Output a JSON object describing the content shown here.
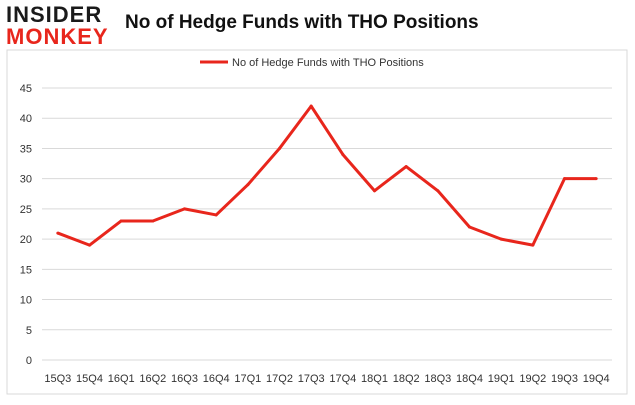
{
  "logo": {
    "line1": "INSIDER",
    "line2": "MONKEY"
  },
  "chart_data": {
    "type": "line",
    "title": "No of Hedge Funds with THO Positions",
    "xlabel": "",
    "ylabel": "",
    "categories": [
      "15Q3",
      "15Q4",
      "16Q1",
      "16Q2",
      "16Q3",
      "16Q4",
      "17Q1",
      "17Q2",
      "17Q3",
      "17Q4",
      "18Q1",
      "18Q2",
      "18Q3",
      "18Q4",
      "19Q1",
      "19Q2",
      "19Q3",
      "19Q4"
    ],
    "series": [
      {
        "name": "No of Hedge Funds with THO Positions",
        "color": "#e8261c",
        "values": [
          21,
          19,
          23,
          23,
          25,
          24,
          29,
          35,
          42,
          34,
          28,
          32,
          28,
          22,
          20,
          19,
          30,
          30
        ]
      }
    ],
    "ylim": [
      0,
      45
    ],
    "yticks": [
      0,
      5,
      10,
      15,
      20,
      25,
      30,
      35,
      40,
      45
    ],
    "grid": true,
    "legend": "top-center"
  }
}
